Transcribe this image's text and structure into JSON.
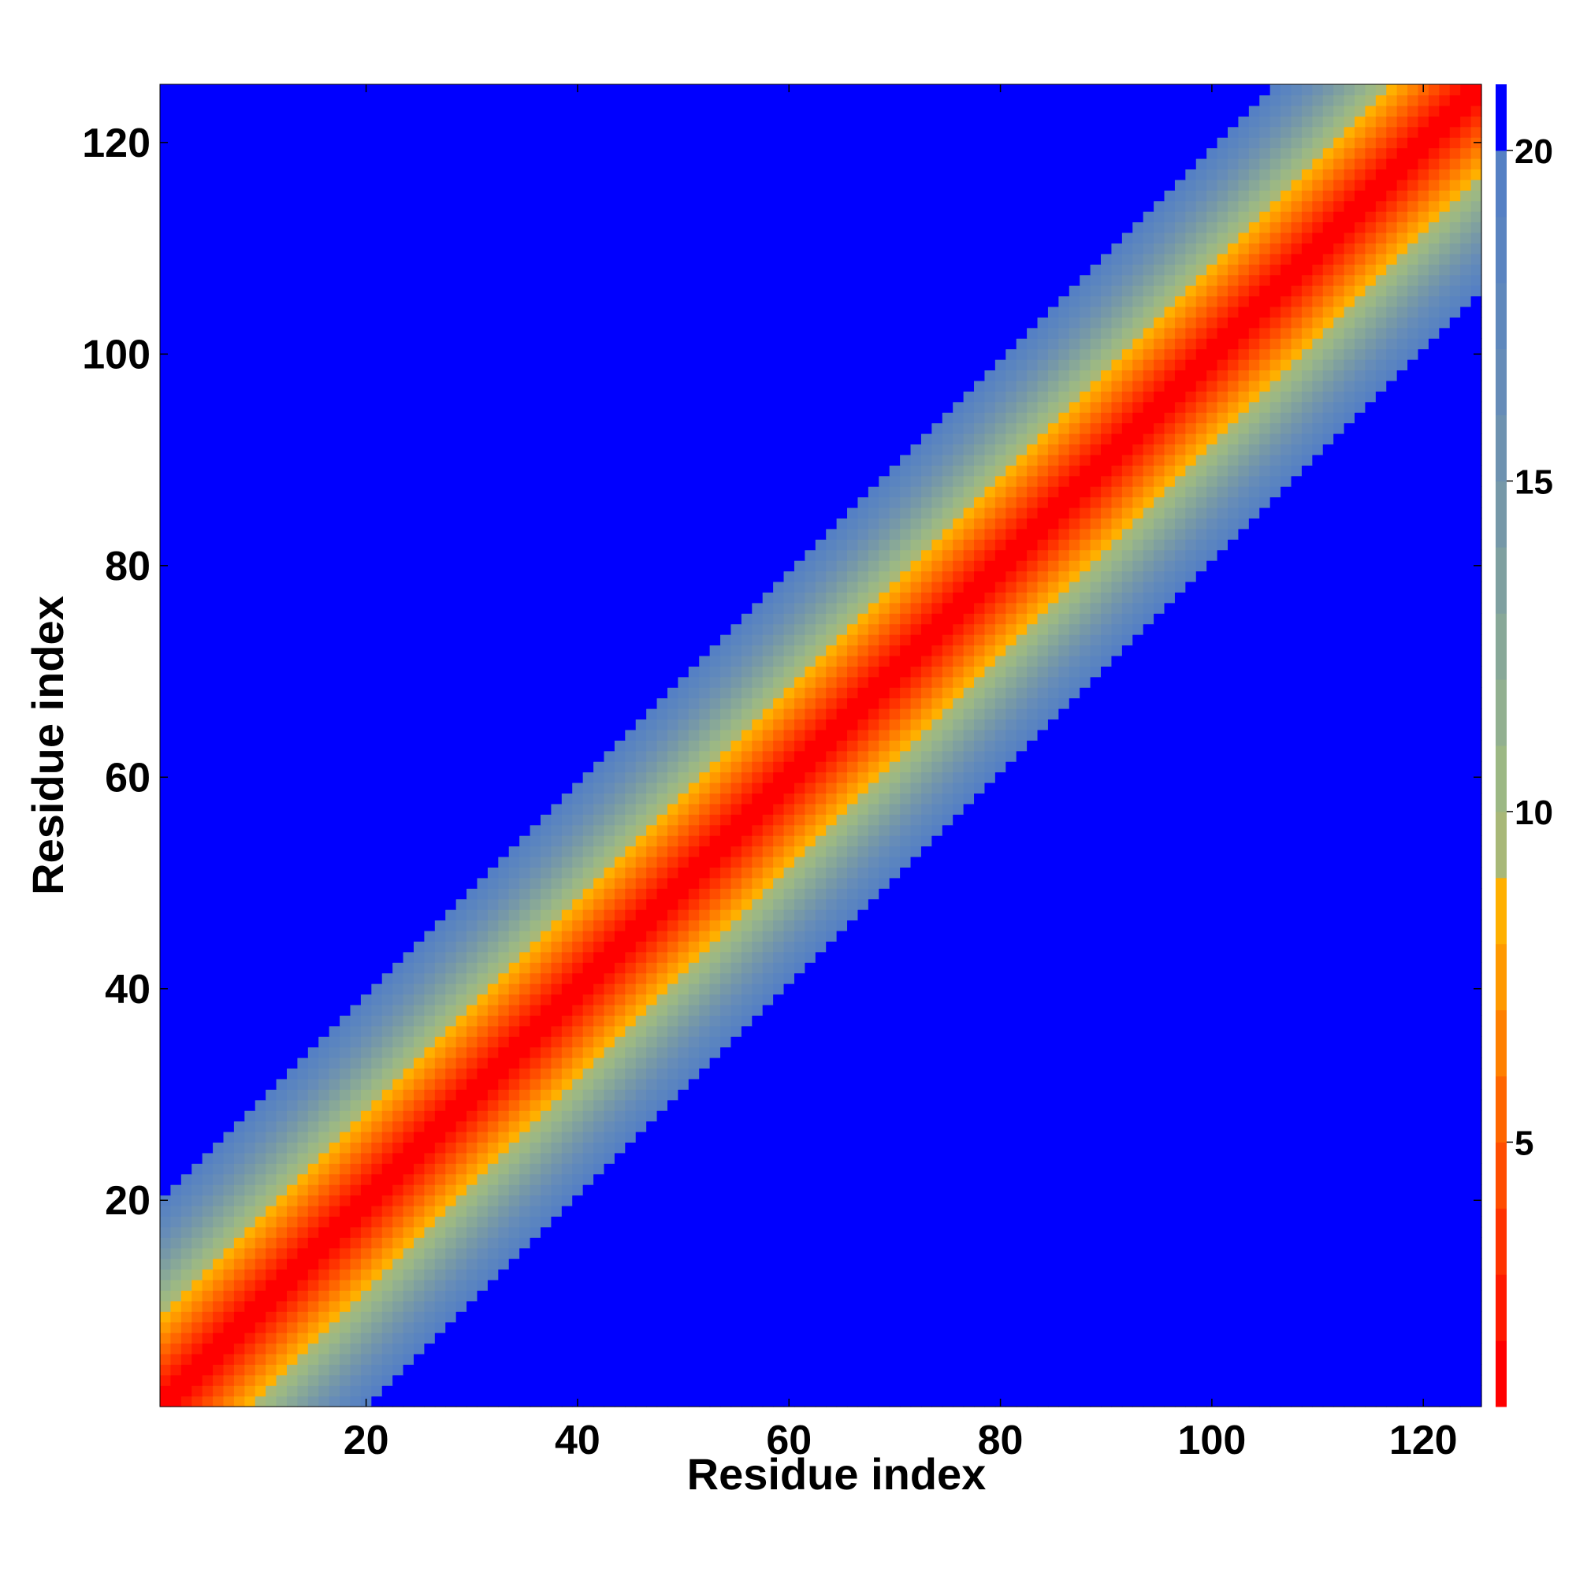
{
  "chart_data": {
    "type": "heatmap",
    "title": "",
    "xlabel": "Residue index",
    "ylabel": "Residue index",
    "n_residues": 125,
    "xlim": [
      1,
      125
    ],
    "ylim": [
      1,
      125
    ],
    "x_ticks": [
      20,
      40,
      60,
      80,
      100,
      120
    ],
    "y_ticks": [
      20,
      40,
      60,
      80,
      100,
      120
    ],
    "grid": false,
    "colorbar": {
      "placement": "right",
      "range": [
        1,
        21
      ],
      "ticks": [
        5,
        10,
        15,
        20
      ],
      "levels": [
        {
          "max": 2,
          "color": "#ff0000"
        },
        {
          "max": 3,
          "color": "#ff1a00"
        },
        {
          "max": 4,
          "color": "#ff3300"
        },
        {
          "max": 5,
          "color": "#ff4d00"
        },
        {
          "max": 6,
          "color": "#ff6600"
        },
        {
          "max": 7,
          "color": "#ff8000"
        },
        {
          "max": 8,
          "color": "#ff9900"
        },
        {
          "max": 9,
          "color": "#ffb000"
        },
        {
          "max": 10,
          "color": "#a8b878"
        },
        {
          "max": 11,
          "color": "#9cb884"
        },
        {
          "max": 12,
          "color": "#92b090"
        },
        {
          "max": 13,
          "color": "#88a898"
        },
        {
          "max": 14,
          "color": "#7fa0a0"
        },
        {
          "max": 15,
          "color": "#7698a8"
        },
        {
          "max": 16,
          "color": "#6e92b0"
        },
        {
          "max": 17,
          "color": "#668cb8"
        },
        {
          "max": 18,
          "color": "#5f88bc"
        },
        {
          "max": 19,
          "color": "#5a84c0"
        },
        {
          "max": 20,
          "color": "#5580c4"
        },
        {
          "max": 21,
          "color": "#0000ff"
        }
      ]
    },
    "value_model": {
      "description_of_data": "distance between residues i and j; grows with |i-j|",
      "diagonal_value": 1,
      "band_half_width_residues": 19,
      "outside_band_value": 21
    }
  }
}
